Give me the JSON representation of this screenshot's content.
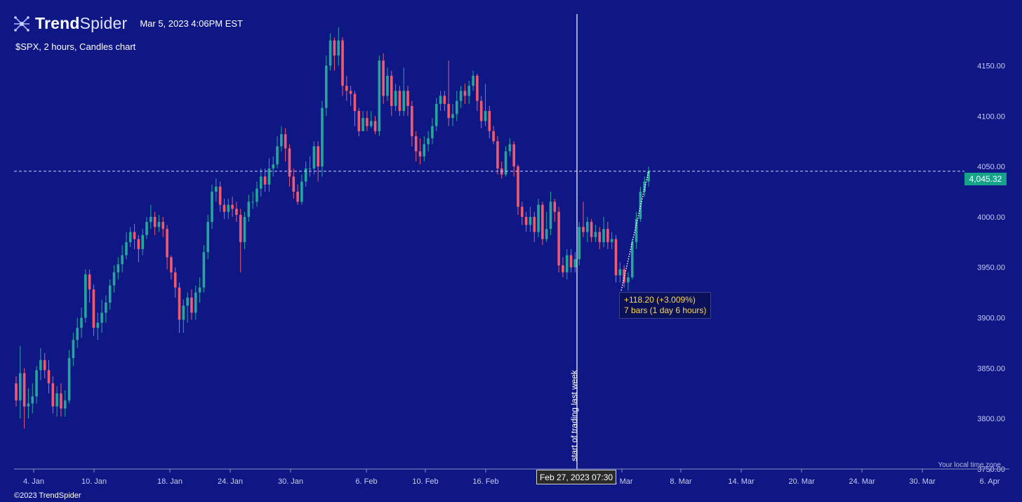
{
  "header": {
    "brand_bold": "Trend",
    "brand_light": "Spider",
    "timestamp": "Mar 5, 2023 4:06PM EST"
  },
  "subtitle": "$SPX, 2 hours, Candles chart",
  "copyright": "©2023 TrendSpider",
  "timezone_note": "Your local time zone",
  "vline_label": "start of trading last week",
  "date_tag": "Feb 27, 2023 07:30",
  "price_tag": "4,045.32",
  "measure": {
    "line1": "+118.20 (+3.009%)",
    "line2": "7 bars (1 day 6 hours)"
  },
  "colors": {
    "background": "#0f1784",
    "up": "#26a69a",
    "down": "#ef5a6f",
    "accent": "#16a38a",
    "tooltip_text": "#ffd84a"
  },
  "chart_data": {
    "type": "candlestick",
    "title": "$SPX, 2 hours, Candles chart",
    "ylim": [
      3750,
      4190
    ],
    "y_ticks": [
      "4150.00",
      "4100.00",
      "4050.00",
      "4000.00",
      "3950.00",
      "3900.00",
      "3850.00",
      "3800.00",
      "3750.00"
    ],
    "x_ticks": [
      "4. Jan",
      "10. Jan",
      "18. Jan",
      "24. Jan",
      "30. Jan",
      "6. Feb",
      "10. Feb",
      "16. Feb",
      "2. Mar",
      "8. Mar",
      "14. Mar",
      "20. Mar",
      "24. Mar",
      "30. Mar",
      "6. Apr"
    ],
    "current_price": 4045.32,
    "measure_from": 3927,
    "measure_to": 4045.32,
    "candles": [
      [
        3835,
        3818,
        3842,
        3812
      ],
      [
        3818,
        3845,
        3872,
        3800
      ],
      [
        3845,
        3812,
        3850,
        3790
      ],
      [
        3812,
        3815,
        3830,
        3800
      ],
      [
        3815,
        3822,
        3835,
        3805
      ],
      [
        3822,
        3848,
        3852,
        3815
      ],
      [
        3848,
        3858,
        3870,
        3838
      ],
      [
        3858,
        3848,
        3865,
        3840
      ],
      [
        3848,
        3835,
        3858,
        3825
      ],
      [
        3835,
        3812,
        3842,
        3805
      ],
      [
        3812,
        3825,
        3832,
        3802
      ],
      [
        3825,
        3810,
        3835,
        3802
      ],
      [
        3810,
        3818,
        3828,
        3802
      ],
      [
        3818,
        3860,
        3868,
        3815
      ],
      [
        3860,
        3878,
        3885,
        3852
      ],
      [
        3878,
        3890,
        3900,
        3870
      ],
      [
        3890,
        3900,
        3910,
        3880
      ],
      [
        3900,
        3943,
        3948,
        3895
      ],
      [
        3943,
        3928,
        3948,
        3915
      ],
      [
        3928,
        3890,
        3933,
        3882
      ],
      [
        3890,
        3895,
        3905,
        3878
      ],
      [
        3895,
        3905,
        3918,
        3885
      ],
      [
        3905,
        3915,
        3922,
        3895
      ],
      [
        3915,
        3932,
        3938,
        3908
      ],
      [
        3932,
        3945,
        3952,
        3925
      ],
      [
        3945,
        3953,
        3960,
        3938
      ],
      [
        3953,
        3962,
        3972,
        3945
      ],
      [
        3962,
        3975,
        3985,
        3958
      ],
      [
        3975,
        3985,
        3990,
        3970
      ],
      [
        3985,
        3978,
        3993,
        3968
      ],
      [
        3978,
        3968,
        3982,
        3955
      ],
      [
        3968,
        3982,
        3988,
        3962
      ],
      [
        3982,
        3995,
        4000,
        3978
      ],
      [
        3995,
        4000,
        4012,
        3988
      ],
      [
        4000,
        3990,
        4005,
        3982
      ],
      [
        3990,
        3995,
        4002,
        3985
      ],
      [
        3995,
        3988,
        4000,
        3980
      ],
      [
        3988,
        3960,
        3992,
        3948
      ],
      [
        3960,
        3945,
        3962,
        3938
      ],
      [
        3945,
        3930,
        3950,
        3920
      ],
      [
        3930,
        3898,
        3935,
        3885
      ],
      [
        3898,
        3912,
        3918,
        3885
      ],
      [
        3912,
        3920,
        3925,
        3895
      ],
      [
        3920,
        3905,
        3928,
        3898
      ],
      [
        3905,
        3925,
        3932,
        3898
      ],
      [
        3925,
        3930,
        3940,
        3915
      ],
      [
        3930,
        3965,
        3972,
        3925
      ],
      [
        3965,
        3995,
        4002,
        3958
      ],
      [
        3995,
        4025,
        4032,
        3988
      ],
      [
        4025,
        4030,
        4038,
        4015
      ],
      [
        4030,
        4012,
        4035,
        4005
      ],
      [
        4012,
        4005,
        4018,
        3998
      ],
      [
        4005,
        4012,
        4018,
        3998
      ],
      [
        4012,
        4008,
        4020,
        4000
      ],
      [
        4008,
        4002,
        4015,
        3995
      ],
      [
        4002,
        3975,
        4008,
        3945
      ],
      [
        3975,
        4000,
        4005,
        3968
      ],
      [
        4000,
        4015,
        4022,
        3995
      ],
      [
        4015,
        4015,
        4025,
        4008
      ],
      [
        4015,
        4028,
        4035,
        4010
      ],
      [
        4028,
        4040,
        4048,
        4020
      ],
      [
        4040,
        4032,
        4048,
        4025
      ],
      [
        4032,
        4048,
        4058,
        4025
      ],
      [
        4048,
        4052,
        4060,
        4040
      ],
      [
        4052,
        4070,
        4080,
        4048
      ],
      [
        4070,
        4082,
        4090,
        4065
      ],
      [
        4082,
        4068,
        4088,
        4055
      ],
      [
        4068,
        4040,
        4072,
        4030
      ],
      [
        4040,
        4025,
        4048,
        4018
      ],
      [
        4025,
        4015,
        4032,
        4012
      ],
      [
        4015,
        4035,
        4042,
        4012
      ],
      [
        4035,
        4048,
        4055,
        4030
      ],
      [
        4048,
        4048,
        4060,
        4040
      ],
      [
        4048,
        4070,
        4075,
        4042
      ],
      [
        4070,
        4050,
        4075,
        4035
      ],
      [
        4050,
        4108,
        4115,
        4040
      ],
      [
        4108,
        4150,
        4160,
        4100
      ],
      [
        4150,
        4175,
        4182,
        4145
      ],
      [
        4175,
        4160,
        4178,
        4145
      ],
      [
        4160,
        4175,
        4188,
        4150
      ],
      [
        4175,
        4130,
        4178,
        4120
      ],
      [
        4130,
        4125,
        4140,
        4115
      ],
      [
        4125,
        4122,
        4130,
        4110
      ],
      [
        4122,
        4105,
        4125,
        4090
      ],
      [
        4105,
        4085,
        4108,
        4080
      ],
      [
        4085,
        4098,
        4105,
        4085
      ],
      [
        4098,
        4090,
        4105,
        4085
      ],
      [
        4090,
        4095,
        4105,
        4088
      ],
      [
        4095,
        4085,
        4100,
        4082
      ],
      [
        4085,
        4155,
        4160,
        4080
      ],
      [
        4155,
        4120,
        4162,
        4112
      ],
      [
        4120,
        4140,
        4148,
        4115
      ],
      [
        4140,
        4110,
        4145,
        4100
      ],
      [
        4110,
        4125,
        4132,
        4105
      ],
      [
        4125,
        4105,
        4130,
        4100
      ],
      [
        4105,
        4125,
        4148,
        4100
      ],
      [
        4125,
        4110,
        4130,
        4100
      ],
      [
        4110,
        4080,
        4115,
        4070
      ],
      [
        4080,
        4065,
        4085,
        4055
      ],
      [
        4065,
        4060,
        4078,
        4052
      ],
      [
        4060,
        4072,
        4080,
        4055
      ],
      [
        4072,
        4078,
        4085,
        4065
      ],
      [
        4078,
        4090,
        4098,
        4072
      ],
      [
        4090,
        4112,
        4118,
        4085
      ],
      [
        4112,
        4120,
        4125,
        4105
      ],
      [
        4120,
        4112,
        4125,
        4105
      ],
      [
        4112,
        4098,
        4155,
        4090
      ],
      [
        4098,
        4102,
        4112,
        4090
      ],
      [
        4102,
        4115,
        4125,
        4095
      ],
      [
        4115,
        4125,
        4130,
        4108
      ],
      [
        4125,
        4120,
        4132,
        4112
      ],
      [
        4120,
        4130,
        4135,
        4112
      ],
      [
        4130,
        4140,
        4145,
        4125
      ],
      [
        4140,
        4115,
        4142,
        4105
      ],
      [
        4115,
        4095,
        4120,
        4088
      ],
      [
        4095,
        4105,
        4132,
        4090
      ],
      [
        4105,
        4085,
        4110,
        4078
      ],
      [
        4085,
        4075,
        4090,
        4072
      ],
      [
        4075,
        4048,
        4080,
        4042
      ],
      [
        4048,
        4042,
        4055,
        4038
      ],
      [
        4042,
        4065,
        4070,
        4040
      ],
      [
        4065,
        4072,
        4078,
        4060
      ],
      [
        4072,
        4050,
        4075,
        4040
      ],
      [
        4050,
        4010,
        4052,
        4002
      ],
      [
        4010,
        4000,
        4015,
        3992
      ],
      [
        4000,
        3992,
        4005,
        3985
      ],
      [
        3992,
        4000,
        4010,
        3985
      ],
      [
        4000,
        3985,
        4005,
        3975
      ],
      [
        3985,
        4012,
        4018,
        3980
      ],
      [
        4012,
        3978,
        4015,
        3972
      ],
      [
        3978,
        3988,
        4005,
        3975
      ],
      [
        3988,
        4015,
        4025,
        3982
      ],
      [
        4015,
        4005,
        4018,
        3995
      ],
      [
        4005,
        3952,
        4010,
        3945
      ],
      [
        3952,
        3945,
        3960,
        3940
      ],
      [
        3945,
        3962,
        3968,
        3938
      ],
      [
        3962,
        3950,
        3968,
        3945
      ],
      [
        3950,
        3958,
        3965,
        3945
      ],
      [
        3958,
        3990,
        3995,
        3952
      ],
      [
        3990,
        3985,
        4015,
        3980
      ],
      [
        3985,
        3995,
        4000,
        3975
      ],
      [
        3995,
        3980,
        3998,
        3975
      ],
      [
        3980,
        3985,
        3992,
        3975
      ],
      [
        3985,
        3975,
        3990,
        3968
      ],
      [
        3975,
        3988,
        4000,
        3970
      ],
      [
        3988,
        3975,
        3995,
        3968
      ],
      [
        3975,
        3978,
        3985,
        3968
      ],
      [
        3978,
        3942,
        3982,
        3935
      ],
      [
        3942,
        3948,
        3955,
        3935
      ],
      [
        3948,
        3935,
        3952,
        3930
      ],
      [
        3935,
        3940,
        3945,
        3927
      ],
      [
        3940,
        3975,
        3978,
        3938
      ],
      [
        3975,
        3998,
        4005,
        3968
      ],
      [
        3998,
        4025,
        4030,
        3995
      ],
      [
        4025,
        4035,
        4040,
        4020
      ],
      [
        4035,
        4045,
        4050,
        4030
      ]
    ]
  }
}
